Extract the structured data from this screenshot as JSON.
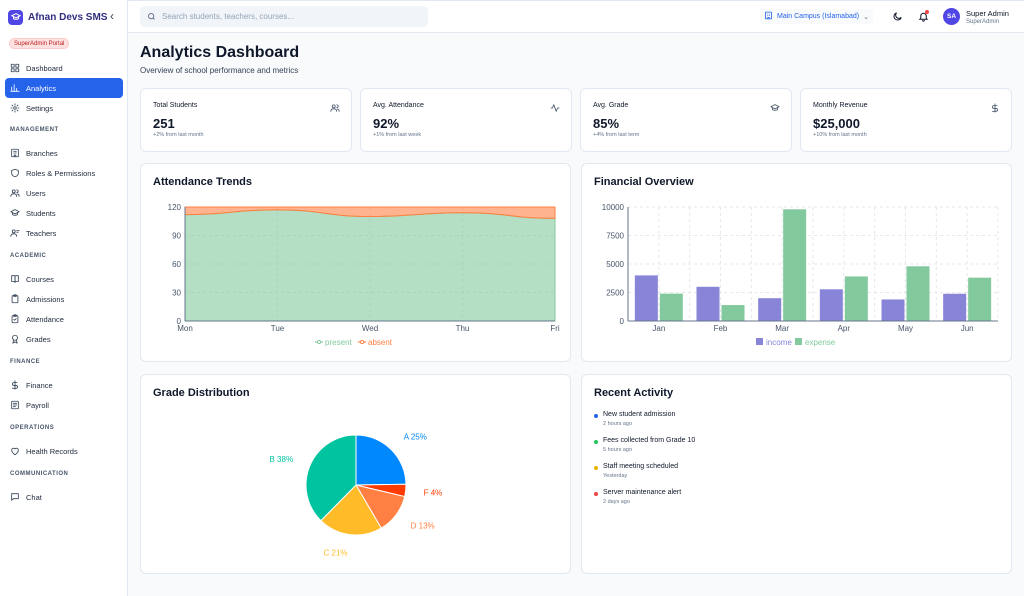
{
  "app": {
    "name": "Afnan Devs SMS",
    "portal_badge": "SuperAdmin Portal"
  },
  "sidebar": {
    "top_items": [
      {
        "label": "Dashboard",
        "icon": "dashboard-icon"
      },
      {
        "label": "Analytics",
        "icon": "bar-chart-icon",
        "active": true
      },
      {
        "label": "Settings",
        "icon": "gear-icon"
      }
    ],
    "sections": [
      {
        "title": "MANAGEMENT",
        "items": [
          {
            "label": "Branches",
            "icon": "building-icon"
          },
          {
            "label": "Roles & Permissions",
            "icon": "shield-icon"
          },
          {
            "label": "Users",
            "icon": "users-icon"
          },
          {
            "label": "Students",
            "icon": "graduation-cap-icon"
          },
          {
            "label": "Teachers",
            "icon": "teacher-icon"
          }
        ]
      },
      {
        "title": "ACADEMIC",
        "items": [
          {
            "label": "Courses",
            "icon": "book-icon"
          },
          {
            "label": "Admissions",
            "icon": "clipboard-icon"
          },
          {
            "label": "Attendance",
            "icon": "check-clipboard-icon"
          },
          {
            "label": "Grades",
            "icon": "award-icon"
          }
        ]
      },
      {
        "title": "FINANCE",
        "items": [
          {
            "label": "Finance",
            "icon": "dollar-icon"
          },
          {
            "label": "Payroll",
            "icon": "receipt-icon"
          }
        ]
      },
      {
        "title": "OPERATIONS",
        "items": [
          {
            "label": "Health Records",
            "icon": "heart-icon"
          }
        ]
      },
      {
        "title": "COMMUNICATION",
        "items": [
          {
            "label": "Chat",
            "icon": "chat-icon"
          }
        ]
      }
    ]
  },
  "topbar": {
    "search_placeholder": "Search students, teachers, courses...",
    "campus": "Main Campus (Islamabad)",
    "user_initials": "SA",
    "user_name": "Super Admin",
    "user_role": "SuperAdmin"
  },
  "page": {
    "title": "Analytics Dashboard",
    "subtitle": "Overview of school performance and metrics"
  },
  "stats": [
    {
      "title": "Total Students",
      "value": "251",
      "note": "+2% from last month",
      "icon": "users-icon"
    },
    {
      "title": "Avg. Attendance",
      "value": "92%",
      "note": "+1% from last week",
      "icon": "activity-icon"
    },
    {
      "title": "Avg. Grade",
      "value": "85%",
      "note": "+4% from last term",
      "icon": "graduation-cap-icon"
    },
    {
      "title": "Monthly Revenue",
      "value": "$25,000",
      "note": "+10% from last month",
      "icon": "dollar-icon"
    }
  ],
  "colors": {
    "primary": "#2563eb",
    "brand": "#4f46e5",
    "present": "#82ca9d",
    "absent": "#ff8042",
    "income": "#8884d8",
    "expense": "#82ca9d"
  },
  "cards": {
    "attendance_title": "Attendance Trends",
    "financial_title": "Financial Overview",
    "grades_title": "Grade Distribution",
    "activity_title": "Recent Activity"
  },
  "chart_data": [
    {
      "type": "area",
      "title": "Attendance Trends",
      "categories": [
        "Mon",
        "Tue",
        "Wed",
        "Thu",
        "Fri"
      ],
      "y_ticks": [
        0,
        30,
        60,
        90,
        120
      ],
      "ylim": [
        0,
        120
      ],
      "stacked": true,
      "series": [
        {
          "name": "present",
          "color": "#82ca9d",
          "values": [
            112,
            117,
            110,
            114,
            108
          ]
        },
        {
          "name": "absent",
          "color": "#ff8042",
          "values": [
            8,
            3,
            10,
            6,
            12
          ]
        }
      ],
      "legend": "bottom"
    },
    {
      "type": "bar",
      "title": "Financial Overview",
      "categories": [
        "Jan",
        "Feb",
        "Mar",
        "Apr",
        "May",
        "Jun"
      ],
      "y_ticks": [
        0,
        2500,
        5000,
        7500,
        10000
      ],
      "ylim": [
        0,
        10000
      ],
      "series": [
        {
          "name": "income",
          "color": "#8884d8",
          "values": [
            4000,
            3000,
            2000,
            2780,
            1890,
            2390
          ]
        },
        {
          "name": "expense",
          "color": "#82ca9d",
          "values": [
            2400,
            1398,
            9800,
            3908,
            4800,
            3800
          ]
        }
      ],
      "legend": "bottom"
    },
    {
      "type": "pie",
      "title": "Grade Distribution",
      "slices": [
        {
          "label": "A 25%",
          "value": 25,
          "color": "#0088fe"
        },
        {
          "label": "F 4%",
          "value": 4,
          "color": "#ff3b00"
        },
        {
          "label": "D 13%",
          "value": 13,
          "color": "#ff8042"
        },
        {
          "label": "C 21%",
          "value": 21,
          "color": "#ffbb28"
        },
        {
          "label": "B 38%",
          "value": 38,
          "color": "#00c49f"
        }
      ]
    }
  ],
  "activity": [
    {
      "title": "New student admission",
      "time": "2 hours ago",
      "color": "#2563eb"
    },
    {
      "title": "Fees collected from Grade 10",
      "time": "5 hours ago",
      "color": "#22c55e"
    },
    {
      "title": "Staff meeting scheduled",
      "time": "Yesterday",
      "color": "#eab308"
    },
    {
      "title": "Server maintenance alert",
      "time": "2 days ago",
      "color": "#ef4444"
    }
  ]
}
